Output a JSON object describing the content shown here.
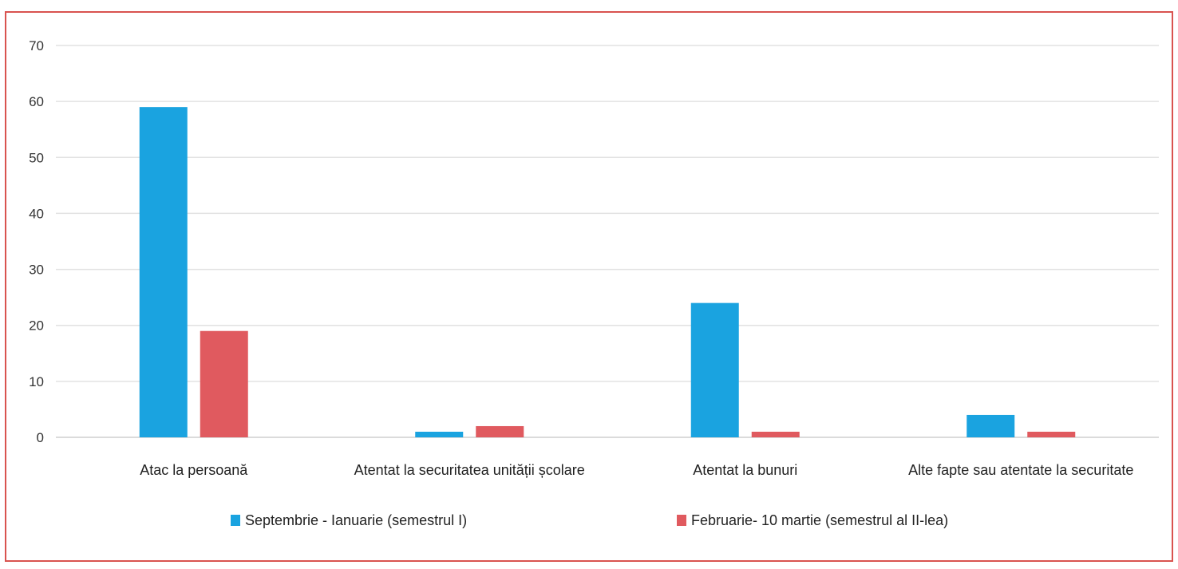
{
  "chart_data": {
    "type": "bar",
    "categories": [
      "Atac la persoană",
      "Atentat la securitatea unității școlare",
      "Atentat la bunuri",
      "Alte fapte sau atentate la securitate"
    ],
    "series": [
      {
        "name": "Septembrie - Ianuarie (semestrul I)",
        "values": [
          59,
          1,
          24,
          4
        ],
        "color": "#1aa3e0"
      },
      {
        "name": "Februarie- 10 martie (semestrul al II-lea)",
        "values": [
          19,
          2,
          1,
          1
        ],
        "color": "#e05a5f"
      }
    ],
    "ylim": [
      0,
      70
    ],
    "yticks": [
      0,
      10,
      20,
      30,
      40,
      50,
      60,
      70
    ],
    "grid": true,
    "legend": "bottom",
    "title": "",
    "xlabel": "",
    "ylabel": ""
  }
}
